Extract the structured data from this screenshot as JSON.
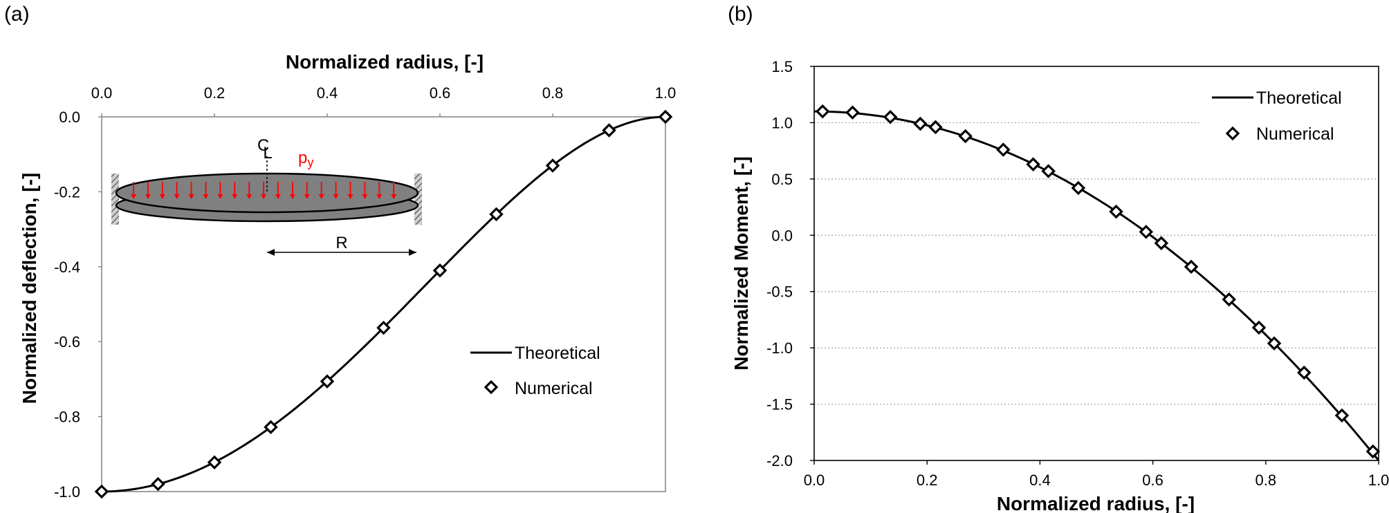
{
  "chart_data": [
    {
      "panel_label": "(a)",
      "type": "line",
      "xlabel": "Normalized radius, [-]",
      "ylabel": "Normalized deflection, [-]",
      "xlim": [
        0.0,
        1.0
      ],
      "ylim": [
        -1.0,
        0.0
      ],
      "x_axis_position": "top",
      "x_ticks": [
        "0.0",
        "0.2",
        "0.4",
        "0.6",
        "0.8",
        "1.0"
      ],
      "y_ticks": [
        "0.0",
        "-0.2",
        "-0.4",
        "-0.6",
        "-0.8",
        "-1.0"
      ],
      "grid": false,
      "legend_position": "bottom-right",
      "series": [
        {
          "name": "Theoretical",
          "style": "solid-line",
          "function": "-(1 - x^2)^2"
        },
        {
          "name": "Numerical",
          "style": "diamond-markers",
          "x": [
            0.0,
            0.1,
            0.2,
            0.3,
            0.4,
            0.5,
            0.6,
            0.7,
            0.8,
            0.9,
            1.0
          ],
          "y": [
            -1.0,
            -0.98,
            -0.922,
            -0.828,
            -0.706,
            -0.563,
            -0.41,
            -0.26,
            -0.13,
            -0.036,
            0.0
          ]
        }
      ],
      "inset": {
        "centerline_label": "C",
        "centerline_subscript": "L",
        "load_label": "p",
        "load_subscript": "y",
        "dimension_label": "R",
        "colors": {
          "plate": "#808080",
          "load": "#ff0000"
        }
      }
    },
    {
      "panel_label": "(b)",
      "type": "line",
      "xlabel": "Normalized radius, [-]",
      "ylabel": "Normalized Moment, [-]",
      "xlim": [
        0.0,
        1.0
      ],
      "ylim": [
        -2.0,
        1.5
      ],
      "x_ticks": [
        "0.0",
        "0.2",
        "0.4",
        "0.6",
        "0.8",
        "1.0"
      ],
      "y_ticks": [
        "1.5",
        "1.0",
        "0.5",
        "0.0",
        "-0.5",
        "-1.0",
        "-1.5",
        "-2.0"
      ],
      "grid": true,
      "legend_position": "top-right",
      "series": [
        {
          "name": "Theoretical",
          "style": "solid-line",
          "function": "1.1 - 3.1 x^2"
        },
        {
          "name": "Numerical",
          "style": "diamond-markers",
          "x": [
            0.015,
            0.068,
            0.135,
            0.188,
            0.215,
            0.268,
            0.335,
            0.388,
            0.415,
            0.468,
            0.535,
            0.588,
            0.615,
            0.668,
            0.735,
            0.788,
            0.815,
            0.868,
            0.935,
            0.99
          ],
          "y": [
            1.1,
            1.09,
            1.05,
            0.99,
            0.96,
            0.88,
            0.76,
            0.63,
            0.57,
            0.42,
            0.21,
            0.03,
            -0.07,
            -0.28,
            -0.57,
            -0.82,
            -0.96,
            -1.22,
            -1.6,
            -1.92
          ]
        }
      ]
    }
  ]
}
